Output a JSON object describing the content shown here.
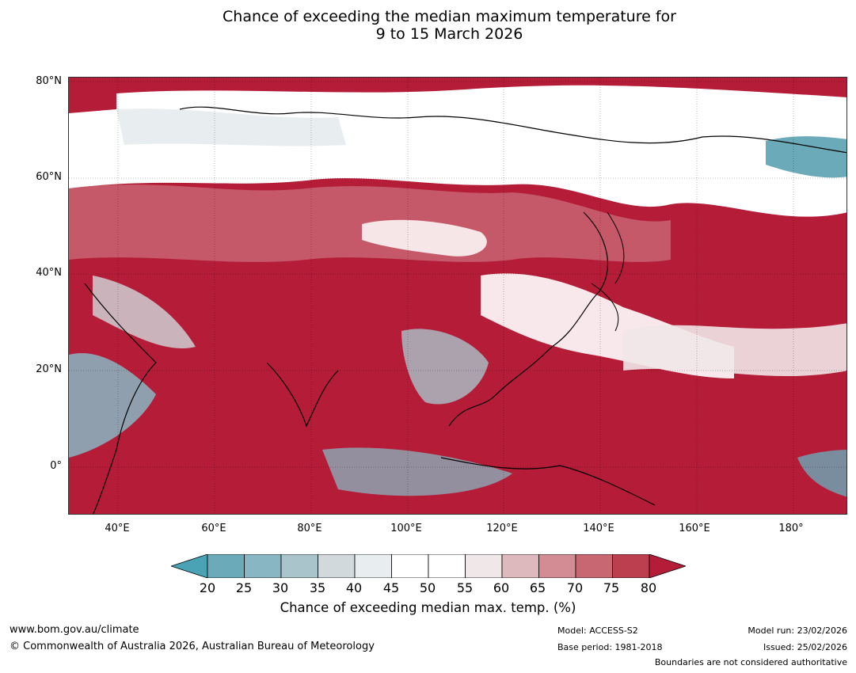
{
  "title": {
    "line1": "Chance of exceeding the median maximum temperature for",
    "line2": "9 to 15 March 2026"
  },
  "axes": {
    "lat_labels": [
      "80°N",
      "60°N",
      "40°N",
      "20°N",
      "0°"
    ],
    "lon_labels": [
      "40°E",
      "60°E",
      "80°E",
      "100°E",
      "120°E",
      "140°E",
      "160°E",
      "180°"
    ]
  },
  "colorbar": {
    "ticks": [
      "20",
      "25",
      "30",
      "35",
      "40",
      "45",
      "50",
      "55",
      "60",
      "65",
      "70",
      "75",
      "80"
    ],
    "colors": [
      "#4aa2b5",
      "#6aaab9",
      "#88b6c2",
      "#a9c4ca",
      "#d1d9dc",
      "#e8eef0",
      "#ffffff",
      "#ffffff",
      "#efe7e8",
      "#ddb8bd",
      "#d48c94",
      "#c86672",
      "#bc3f4f",
      "#b41c37"
    ],
    "title": "Chance of exceeding median max. temp. (%)"
  },
  "footer": {
    "website": "www.bom.gov.au/climate",
    "copyright": "© Commonwealth of Australia 2026, Australian Bureau of Meteorology",
    "model": "Model: ACCESS-S2",
    "base_period": "Base period: 1981-2018",
    "model_run": "Model run: 23/02/2026",
    "issued": "Issued: 25/02/2026",
    "disclaimer": "Boundaries are not considered authoritative"
  }
}
